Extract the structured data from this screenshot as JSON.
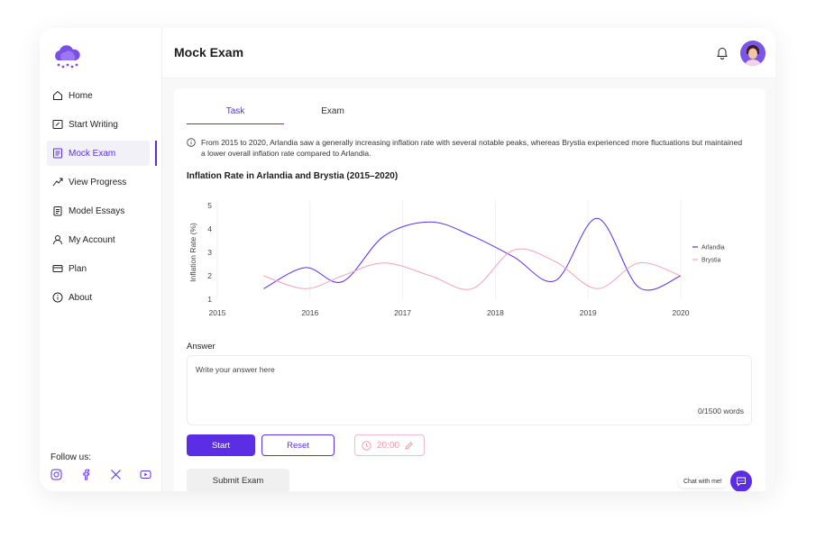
{
  "sidebar": {
    "items": [
      {
        "label": "Home",
        "icon": "home-icon"
      },
      {
        "label": "Start Writing",
        "icon": "pen-square-icon"
      },
      {
        "label": "Mock Exam",
        "icon": "document-icon"
      },
      {
        "label": "View Progress",
        "icon": "trend-icon"
      },
      {
        "label": "Model Essays",
        "icon": "clipboard-icon"
      },
      {
        "label": "My Account",
        "icon": "user-icon"
      },
      {
        "label": "Plan",
        "icon": "card-icon"
      },
      {
        "label": "About",
        "icon": "info-icon"
      }
    ],
    "active_index": 2,
    "follow_label": "Follow us:",
    "socials": [
      "instagram-icon",
      "facebook-icon",
      "x-icon",
      "youtube-icon"
    ]
  },
  "header": {
    "title": "Mock Exam"
  },
  "tabs": [
    {
      "label": "Task"
    },
    {
      "label": "Exam"
    }
  ],
  "task": {
    "info_text": "From 2015 to 2020, Arlandia saw a generally increasing inflation rate with several notable peaks, whereas Brystia experienced more fluctuations but maintained a lower overall inflation rate compared to Arlandia."
  },
  "chart_data": {
    "type": "line",
    "title": "Inflation Rate in Arlandia and Brystia (2015–2020)",
    "xlabel": "",
    "ylabel": "Inflation Rate (%)",
    "x_ticks": [
      "2015",
      "2016",
      "2017",
      "2018",
      "2019",
      "2020"
    ],
    "y_ticks": [
      "1",
      "2",
      "3",
      "4",
      "5"
    ],
    "xlim": [
      2015,
      2020
    ],
    "ylim": [
      1,
      5
    ],
    "legend_position": "right",
    "series": [
      {
        "name": "Arlandia",
        "color": "#5b2ee6",
        "x": [
          2015.5,
          2015.95,
          2016.35,
          2016.8,
          2017.3,
          2017.75,
          2018.2,
          2018.65,
          2019.1,
          2019.55,
          2020
        ],
        "y": [
          1.45,
          2.35,
          1.75,
          3.7,
          4.3,
          3.7,
          2.8,
          1.8,
          4.45,
          1.5,
          2.0
        ]
      },
      {
        "name": "Brystia",
        "color": "#f4a3b8",
        "x": [
          2015.5,
          2015.95,
          2016.35,
          2016.8,
          2017.3,
          2017.75,
          2018.2,
          2018.65,
          2019.1,
          2019.55,
          2020
        ],
        "y": [
          2.0,
          1.45,
          2.0,
          2.55,
          2.0,
          1.45,
          3.1,
          2.6,
          1.45,
          2.55,
          2.0
        ]
      }
    ]
  },
  "answer": {
    "label": "Answer",
    "placeholder": "Write your answer here",
    "word_count": "0/1500 words"
  },
  "buttons": {
    "start": "Start",
    "reset": "Reset",
    "submit": "Submit Exam"
  },
  "timer": {
    "value": "20:00"
  },
  "chat": {
    "label": "Chat with me!"
  },
  "colors": {
    "accent": "#5b2ee6",
    "secondary": "#f4a3b8"
  }
}
